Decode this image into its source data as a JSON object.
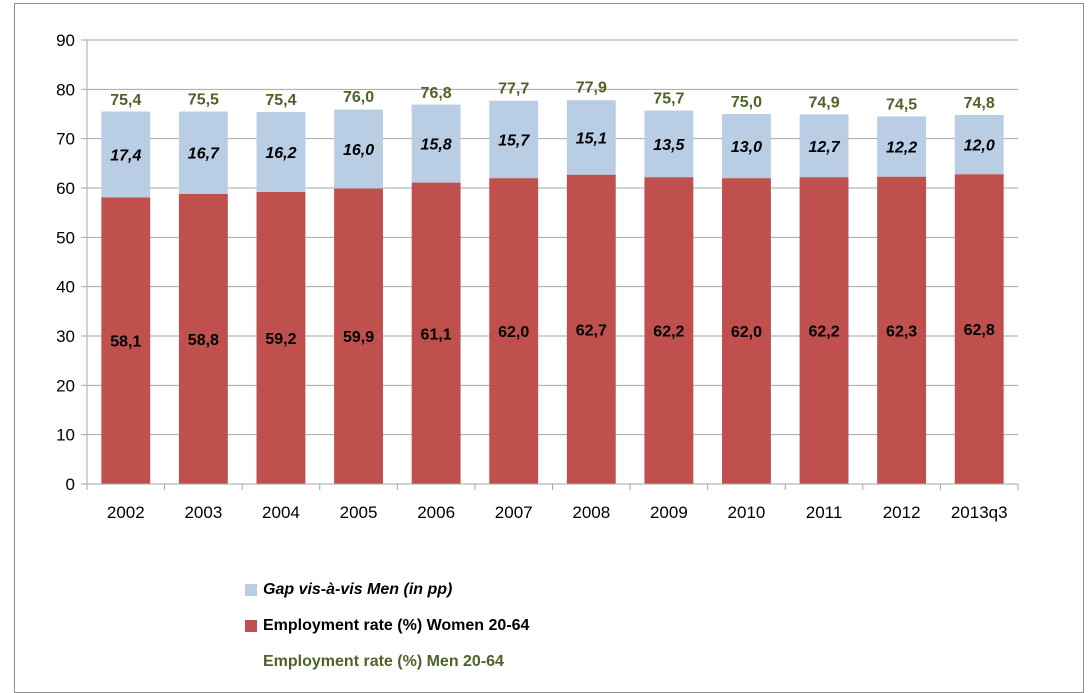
{
  "chart_data": {
    "type": "bar",
    "stacked": true,
    "categories": [
      "2002",
      "2003",
      "2004",
      "2005",
      "2006",
      "2007",
      "2008",
      "2009",
      "2010",
      "2011",
      "2012",
      "2013q3"
    ],
    "series": [
      {
        "name": "Employment rate (%) Women 20-64",
        "values": [
          58.1,
          58.8,
          59.2,
          59.9,
          61.1,
          62.0,
          62.7,
          62.2,
          62.0,
          62.2,
          62.3,
          62.8
        ],
        "labels": [
          "58,1",
          "58,8",
          "59,2",
          "59,9",
          "61,1",
          "62,0",
          "62,7",
          "62,2",
          "62,0",
          "62,2",
          "62,3",
          "62,8"
        ],
        "color": "#c0504d"
      },
      {
        "name": "Gap vis-à-vis Men (in pp)",
        "values": [
          17.4,
          16.7,
          16.2,
          16.0,
          15.8,
          15.7,
          15.1,
          13.5,
          13.0,
          12.7,
          12.2,
          12.0
        ],
        "labels": [
          "17,4",
          "16,7",
          "16,2",
          "16,0",
          "15,8",
          "15,7",
          "15,1",
          "13,5",
          "13,0",
          "12,7",
          "12,2",
          "12,0"
        ],
        "color": "#b9cde5"
      }
    ],
    "totals": {
      "name": "Employment rate (%) Men 20-64",
      "values": [
        75.4,
        75.5,
        75.4,
        76.0,
        76.8,
        77.7,
        77.9,
        75.7,
        75.0,
        74.9,
        74.5,
        74.8
      ],
      "labels": [
        "75,4",
        "75,5",
        "75,4",
        "76,0",
        "76,8",
        "77,7",
        "77,9",
        "75,7",
        "75,0",
        "74,9",
        "74,5",
        "74,8"
      ],
      "color": "#4f6228"
    },
    "yticks": [
      "0",
      "10",
      "20",
      "30",
      "40",
      "50",
      "60",
      "70",
      "80",
      "90"
    ],
    "ylim": [
      0,
      90
    ],
    "grid": true,
    "legend_position": "bottom-left"
  },
  "legend": {
    "gap": "Gap vis-à-vis Men (in pp)",
    "women": "Employment rate (%) Women 20-64",
    "men": "Employment rate (%) Men 20-64"
  }
}
